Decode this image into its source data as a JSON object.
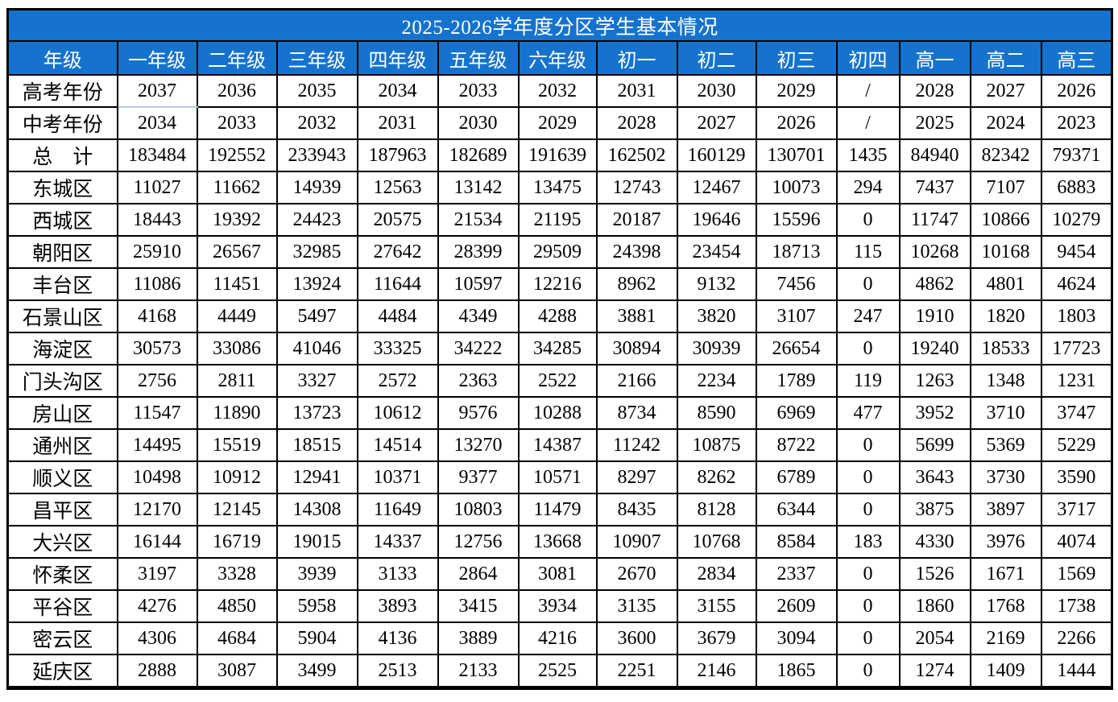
{
  "title": "2025-2026学年度分区学生基本情况",
  "table": {
    "columns": [
      "年级",
      "一年级",
      "二年级",
      "三年级",
      "四年级",
      "五年级",
      "六年级",
      "初一",
      "初二",
      "初三",
      "初四",
      "高一",
      "高二",
      "高三"
    ],
    "rows": [
      {
        "label": "高考年份",
        "values": [
          "2037",
          "2036",
          "2035",
          "2034",
          "2033",
          "2032",
          "2031",
          "2030",
          "2029",
          "/",
          "2028",
          "2027",
          "2026"
        ]
      },
      {
        "label": "中考年份",
        "values": [
          "2034",
          "2033",
          "2032",
          "2031",
          "2030",
          "2029",
          "2028",
          "2027",
          "2026",
          "/",
          "2025",
          "2024",
          "2023"
        ]
      },
      {
        "label": "总　计",
        "values": [
          "183484",
          "192552",
          "233943",
          "187963",
          "182689",
          "191639",
          "162502",
          "160129",
          "130701",
          "1435",
          "84940",
          "82342",
          "79371"
        ]
      },
      {
        "label": "东城区",
        "values": [
          "11027",
          "11662",
          "14939",
          "12563",
          "13142",
          "13475",
          "12743",
          "12467",
          "10073",
          "294",
          "7437",
          "7107",
          "6883"
        ]
      },
      {
        "label": "西城区",
        "values": [
          "18443",
          "19392",
          "24423",
          "20575",
          "21534",
          "21195",
          "20187",
          "19646",
          "15596",
          "0",
          "11747",
          "10866",
          "10279"
        ]
      },
      {
        "label": "朝阳区",
        "values": [
          "25910",
          "26567",
          "32985",
          "27642",
          "28399",
          "29509",
          "24398",
          "23454",
          "18713",
          "115",
          "10268",
          "10168",
          "9454"
        ]
      },
      {
        "label": "丰台区",
        "values": [
          "11086",
          "11451",
          "13924",
          "11644",
          "10597",
          "12216",
          "8962",
          "9132",
          "7456",
          "0",
          "4862",
          "4801",
          "4624"
        ]
      },
      {
        "label": "石景山区",
        "values": [
          "4168",
          "4449",
          "5497",
          "4484",
          "4349",
          "4288",
          "3881",
          "3820",
          "3107",
          "247",
          "1910",
          "1820",
          "1803"
        ]
      },
      {
        "label": "海淀区",
        "values": [
          "30573",
          "33086",
          "41046",
          "33325",
          "34222",
          "34285",
          "30894",
          "30939",
          "26654",
          "0",
          "19240",
          "18533",
          "17723"
        ]
      },
      {
        "label": "门头沟区",
        "values": [
          "2756",
          "2811",
          "3327",
          "2572",
          "2363",
          "2522",
          "2166",
          "2234",
          "1789",
          "119",
          "1263",
          "1348",
          "1231"
        ]
      },
      {
        "label": "房山区",
        "values": [
          "11547",
          "11890",
          "13723",
          "10612",
          "9576",
          "10288",
          "8734",
          "8590",
          "6969",
          "477",
          "3952",
          "3710",
          "3747"
        ]
      },
      {
        "label": "通州区",
        "values": [
          "14495",
          "15519",
          "18515",
          "14514",
          "13270",
          "14387",
          "11242",
          "10875",
          "8722",
          "0",
          "5699",
          "5369",
          "5229"
        ]
      },
      {
        "label": "顺义区",
        "values": [
          "10498",
          "10912",
          "12941",
          "10371",
          "9377",
          "10571",
          "8297",
          "8262",
          "6789",
          "0",
          "3643",
          "3730",
          "3590"
        ]
      },
      {
        "label": "昌平区",
        "values": [
          "12170",
          "12145",
          "14308",
          "11649",
          "10803",
          "11479",
          "8435",
          "8128",
          "6344",
          "0",
          "3875",
          "3897",
          "3717"
        ]
      },
      {
        "label": "大兴区",
        "values": [
          "16144",
          "16719",
          "19015",
          "14337",
          "12756",
          "13668",
          "10907",
          "10768",
          "8584",
          "183",
          "4330",
          "3976",
          "4074"
        ]
      },
      {
        "label": "怀柔区",
        "values": [
          "3197",
          "3328",
          "3939",
          "3133",
          "2864",
          "3081",
          "2670",
          "2834",
          "2337",
          "0",
          "1526",
          "1671",
          "1569"
        ]
      },
      {
        "label": "平谷区",
        "values": [
          "4276",
          "4850",
          "5958",
          "3893",
          "3415",
          "3934",
          "3135",
          "3155",
          "2609",
          "0",
          "1860",
          "1768",
          "1738"
        ]
      },
      {
        "label": "密云区",
        "values": [
          "4306",
          "4684",
          "5904",
          "4136",
          "3889",
          "4216",
          "3600",
          "3679",
          "3094",
          "0",
          "2054",
          "2169",
          "2266"
        ]
      },
      {
        "label": "延庆区",
        "values": [
          "2888",
          "3087",
          "3499",
          "2513",
          "2133",
          "2525",
          "2251",
          "2146",
          "1865",
          "0",
          "1274",
          "1409",
          "1444"
        ]
      }
    ]
  },
  "colors": {
    "header_bg": "#1573cd",
    "header_text": "#ffffff",
    "border": "#000000",
    "special_underline": "#b9cde9"
  }
}
